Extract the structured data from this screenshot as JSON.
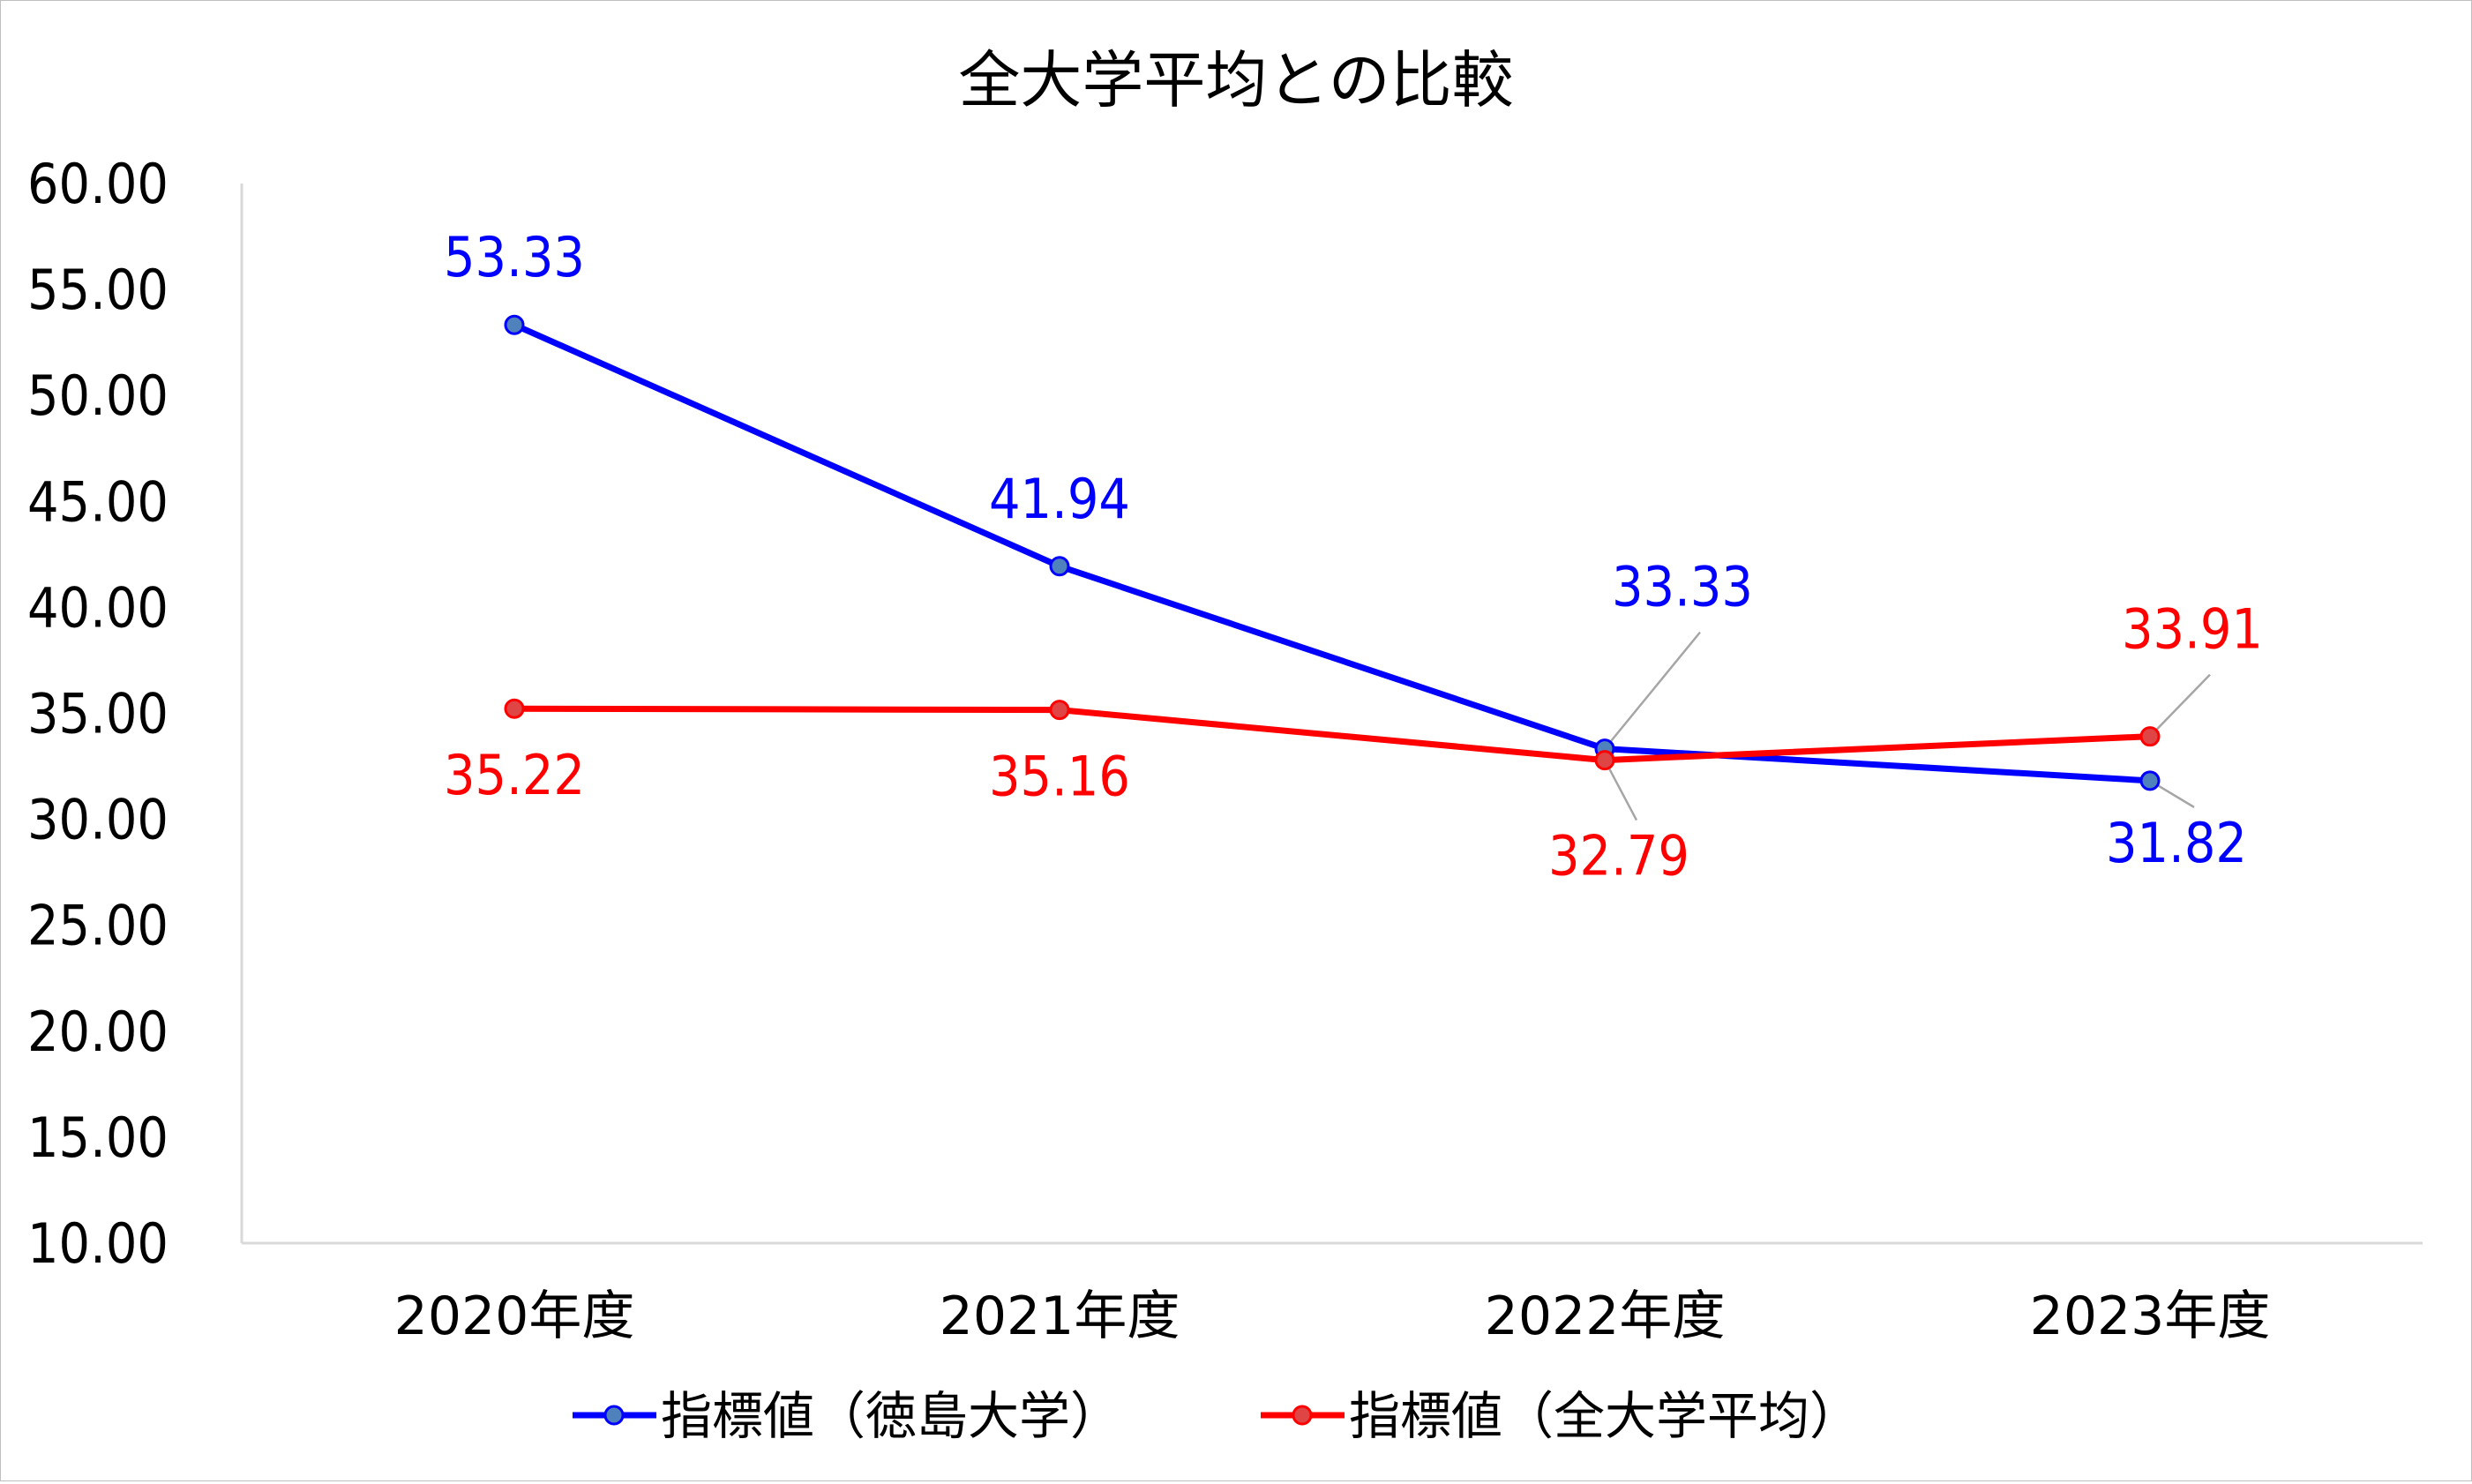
{
  "chart_data": {
    "type": "line",
    "title": "全大学平均との比較",
    "categories": [
      "2020年度",
      "2021年度",
      "2022年度",
      "2023年度"
    ],
    "series": [
      {
        "name": "指標値（徳島大学）",
        "color": "#0000ff",
        "values": [
          53.33,
          41.94,
          33.33,
          31.82
        ],
        "labels": [
          "53.33",
          "41.94",
          "33.33",
          "31.82"
        ]
      },
      {
        "name": "指標値（全大学平均）",
        "color": "#ff0000",
        "values": [
          35.22,
          35.16,
          32.79,
          33.91
        ],
        "labels": [
          "35.22",
          "35.16",
          "32.79",
          "33.91"
        ]
      }
    ],
    "ylim": [
      10,
      60
    ],
    "yticks": [
      "10.00",
      "15.00",
      "20.00",
      "25.00",
      "30.00",
      "35.00",
      "40.00",
      "45.00",
      "50.00",
      "55.00",
      "60.00"
    ],
    "xlabel": "",
    "ylabel": "",
    "grid": false,
    "legend": "bottom"
  }
}
